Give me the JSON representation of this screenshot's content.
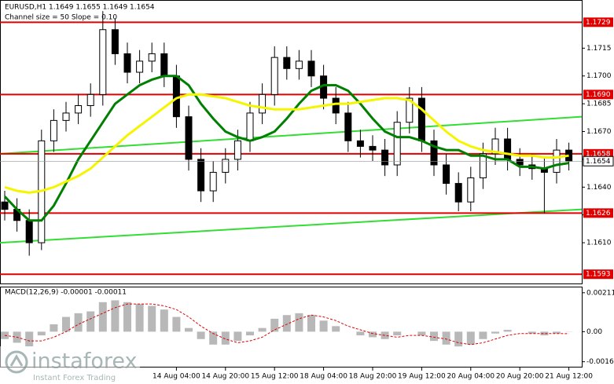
{
  "chart_data": [
    {
      "type": "candlestick",
      "title": "EURUSD,H1  1.1649 1.1655 1.1649 1.1654",
      "subtitle": "Channel size = 50 Slope = 0.10",
      "categories": [
        null,
        null,
        null,
        null,
        null,
        null,
        null,
        null,
        null,
        null,
        null,
        null,
        null,
        null,
        "14 Aug 04:00",
        null,
        null,
        null,
        "14 Aug 20:00",
        null,
        null,
        null,
        "15 Aug 12:00",
        null,
        null,
        null,
        "18 Aug 04:00",
        null,
        null,
        null,
        "18 Aug 20:00",
        null,
        null,
        null,
        "19 Aug 12:00",
        null,
        null,
        null,
        "20 Aug 04:00",
        null,
        null,
        null,
        "20 Aug 20:00",
        null,
        null,
        null,
        "21 Aug 12:00"
      ],
      "open": [
        1.1632,
        1.1628,
        1.1622,
        1.161,
        1.1665,
        1.1676,
        1.168,
        1.1684,
        1.169,
        1.1725,
        1.1712,
        1.1702,
        1.1708,
        1.1712,
        1.17,
        1.1678,
        1.1655,
        1.1638,
        1.1648,
        1.1655,
        1.1665,
        1.168,
        1.169,
        1.171,
        1.1704,
        1.1708,
        1.17,
        1.1688,
        1.168,
        1.1665,
        1.1662,
        1.166,
        1.1652,
        1.1675,
        1.1688,
        1.1665,
        1.1652,
        1.1642,
        1.1632,
        1.1645,
        1.1658,
        1.1666,
        1.1655,
        1.1652,
        1.165,
        1.1648,
        1.166
      ],
      "high": [
        1.1638,
        1.1634,
        1.1628,
        1.1671,
        1.1682,
        1.1686,
        1.169,
        1.1696,
        1.1735,
        1.1731,
        1.1718,
        1.1714,
        1.1718,
        1.1718,
        1.1706,
        1.1684,
        1.1661,
        1.1654,
        1.1661,
        1.1671,
        1.1686,
        1.1696,
        1.1716,
        1.1716,
        1.1714,
        1.1714,
        1.1706,
        1.1694,
        1.1686,
        1.1671,
        1.1668,
        1.1666,
        1.1681,
        1.1694,
        1.1694,
        1.1671,
        1.1658,
        1.1648,
        1.1651,
        1.1664,
        1.1672,
        1.1672,
        1.1661,
        1.1658,
        1.1656,
        1.1666,
        1.1664
      ],
      "low": [
        1.1622,
        1.1616,
        1.1603,
        1.1606,
        1.1659,
        1.167,
        1.1674,
        1.1678,
        1.1684,
        1.1706,
        1.1696,
        1.1696,
        1.1702,
        1.1694,
        1.1672,
        1.1649,
        1.1632,
        1.1632,
        1.1642,
        1.1649,
        1.1659,
        1.1674,
        1.1684,
        1.1698,
        1.1698,
        1.1694,
        1.1682,
        1.1674,
        1.1659,
        1.1656,
        1.1654,
        1.1646,
        1.1646,
        1.1669,
        1.1659,
        1.1646,
        1.1636,
        1.1627,
        1.1627,
        1.1639,
        1.1652,
        1.1649,
        1.1646,
        1.1644,
        1.1626,
        1.1642,
        1.1649
      ],
      "close": [
        1.1628,
        1.1622,
        1.161,
        1.1665,
        1.1676,
        1.168,
        1.1684,
        1.169,
        1.1725,
        1.1712,
        1.1702,
        1.1708,
        1.1712,
        1.17,
        1.1678,
        1.1655,
        1.1638,
        1.1648,
        1.1655,
        1.1665,
        1.168,
        1.169,
        1.171,
        1.1704,
        1.1708,
        1.17,
        1.1688,
        1.168,
        1.1665,
        1.1662,
        1.166,
        1.1652,
        1.1675,
        1.1688,
        1.1665,
        1.1652,
        1.1642,
        1.1632,
        1.1645,
        1.1658,
        1.1666,
        1.1655,
        1.1652,
        1.165,
        1.1648,
        1.166,
        1.1654
      ],
      "color_up": "#ffffff",
      "color_down": "#000000",
      "series": [
        {
          "color": "#008000",
          "values": [
            1.1635,
            1.1628,
            1.1622,
            1.1622,
            1.163,
            1.1642,
            1.1655,
            1.1665,
            1.1675,
            1.1685,
            1.169,
            1.1695,
            1.1698,
            1.17,
            1.17,
            1.1695,
            1.1685,
            1.1677,
            1.167,
            1.1667,
            1.1665,
            1.1667,
            1.167,
            1.1677,
            1.1685,
            1.1692,
            1.1695,
            1.1695,
            1.1692,
            1.1685,
            1.1677,
            1.167,
            1.1667,
            1.1667,
            1.1665,
            1.1662,
            1.166,
            1.166,
            1.1657,
            1.1657,
            1.1655,
            1.1655,
            1.1651,
            1.1651,
            1.165,
            1.1652,
            1.1653
          ]
        },
        {
          "color": "#f5f500",
          "values": [
            1.164,
            1.1638,
            1.1637,
            1.1638,
            1.164,
            1.1643,
            1.1646,
            1.165,
            1.1656,
            1.1662,
            1.1668,
            1.1673,
            1.1678,
            1.1683,
            1.1688,
            1.169,
            1.169,
            1.1689,
            1.1688,
            1.1686,
            1.1684,
            1.1683,
            1.1682,
            1.1682,
            1.1682,
            1.1683,
            1.1684,
            1.1685,
            1.1685,
            1.1686,
            1.1687,
            1.1688,
            1.1688,
            1.1687,
            1.1682,
            1.1676,
            1.167,
            1.1665,
            1.1662,
            1.166,
            1.1659,
            1.1658,
            1.1657,
            1.1657,
            1.1656,
            1.1656,
            1.1657
          ]
        }
      ],
      "trend_lines": [
        {
          "color": "#33dd33",
          "values": [
            1.1658,
            1.1678
          ]
        },
        {
          "color": "#33dd33",
          "values": [
            1.161,
            1.1628
          ]
        }
      ],
      "levels": [
        {
          "value": 1.1729
        },
        {
          "value": 1.169,
          "label": "1.1690"
        },
        {
          "value": 1.1658
        },
        {
          "value": 1.1626
        },
        {
          "value": 1.1593
        }
      ],
      "level_color": "#e00000",
      "current_price": 1.1654,
      "ylim": [
        1.1588,
        1.1741
      ],
      "yticks": [
        {
          "value": 1.161,
          "label": "1.1610"
        },
        1.1625,
        {
          "value": 1.164,
          "label": "1.1640"
        },
        1.1655,
        {
          "value": 1.167,
          "label": "1.1670"
        },
        1.1685,
        {
          "value": 1.17,
          "label": "1.1700"
        },
        1.1715
      ]
    },
    {
      "type": "bar",
      "title": "MACD(12,26,9) -0.00001 -0.00011",
      "values": [
        -0.0004,
        -0.0006,
        -0.0008,
        -0.0002,
        0.0004,
        0.0008,
        0.001,
        0.0011,
        0.0016,
        0.0017,
        0.0016,
        0.0015,
        0.0014,
        0.0012,
        0.0008,
        0.0002,
        -0.0004,
        -0.0007,
        -0.0007,
        -0.0005,
        -0.0002,
        0.0002,
        0.0007,
        0.0009,
        0.001,
        0.0009,
        0.0006,
        0.0003,
        0.0,
        -0.0002,
        -0.0003,
        -0.0004,
        -0.0002,
        0.0,
        -0.0002,
        -0.0005,
        -0.0007,
        -0.0008,
        -0.0007,
        -0.0004,
        -0.0001,
        0.0001,
        0.0,
        -0.0001,
        -0.0002,
        -0.0001,
        -1e-05
      ],
      "color": "#b8b8b8",
      "signal": {
        "color": "#e00000",
        "values": [
          -0.0002,
          -0.0003,
          -0.0005,
          -0.0005,
          -0.0003,
          0.0,
          0.0004,
          0.0007,
          0.001,
          0.0013,
          0.0015,
          0.0015,
          0.0015,
          0.0014,
          0.0012,
          0.0008,
          0.0003,
          -0.0001,
          -0.0004,
          -0.0006,
          -0.0005,
          -0.0003,
          0.0001,
          0.0004,
          0.0007,
          0.0009,
          0.0008,
          0.0006,
          0.0003,
          0.0001,
          -0.0001,
          -0.0002,
          -0.0003,
          -0.0002,
          -0.0002,
          -0.0003,
          -0.0004,
          -0.0006,
          -0.0007,
          -0.0006,
          -0.0004,
          -0.0002,
          -0.0001,
          -0.0001,
          -0.0001,
          -0.0001,
          -0.00011
        ]
      },
      "ylim": [
        -0.0019,
        0.0024
      ],
      "yticks": [
        0.00211,
        {
          "value": 0,
          "label": "0.00"
        },
        -0.00163
      ]
    }
  ],
  "watermark": {
    "brand": "instaforex",
    "tagline": "Instant Forex Trading"
  }
}
